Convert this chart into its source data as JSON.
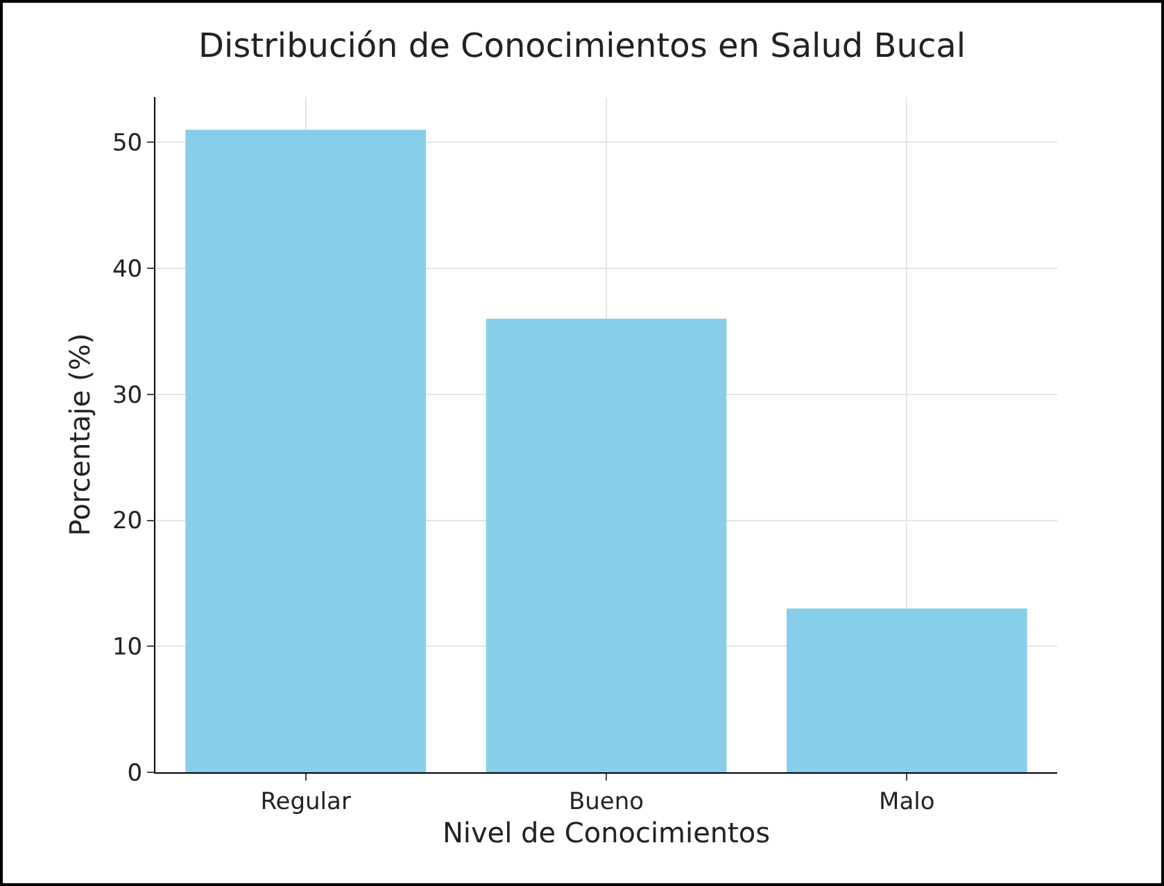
{
  "chart_data": {
    "type": "bar",
    "title": "Distribución de Conocimientos en Salud Bucal",
    "xlabel": "Nivel de Conocimientos",
    "ylabel": "Porcentaje (%)",
    "categories": [
      "Regular",
      "Bueno",
      "Malo"
    ],
    "values": [
      51,
      36,
      13
    ],
    "color": "#87ceeb",
    "ylim": [
      0,
      53.6
    ],
    "yticks": [
      0,
      10,
      20,
      30,
      40,
      50
    ],
    "grid": true
  }
}
